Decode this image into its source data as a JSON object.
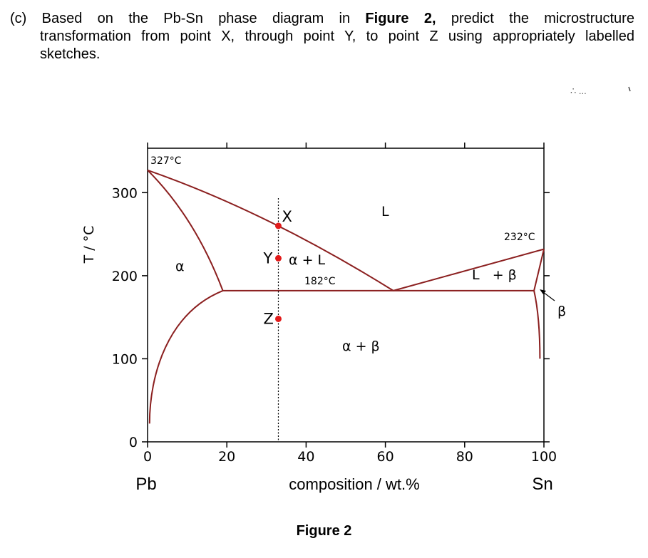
{
  "question": {
    "part": "(c)",
    "line1_words": [
      "Based",
      "on",
      "the",
      "Pb-Sn",
      "phase",
      "diagram",
      "in",
      "Figure",
      "2,",
      "predict",
      "the",
      "microstructure"
    ],
    "line2": "transformation from point X, through point Y, to point Z using appropriately labelled",
    "line3": "sketches."
  },
  "figure": {
    "caption": "Figure 2",
    "y_axis_label": "T / °C",
    "x_axis_label": "composition / wt.%",
    "x_ticks": [
      "0",
      "20",
      "40",
      "60",
      "80",
      "100"
    ],
    "y_ticks": [
      "0",
      "100",
      "200",
      "300"
    ],
    "left_element": "Pb",
    "right_element": "Sn",
    "temperatures": {
      "pb_melt": "327°C",
      "sn_melt": "232°C",
      "eutectic": "182°C"
    },
    "phase_labels": {
      "alpha": "α",
      "liquid": "L",
      "alpha_liquid": "α + L",
      "alpha_beta": "α + β",
      "liquid_beta": "L   + β",
      "beta": "β"
    },
    "points": [
      {
        "label": "X",
        "wt": 33,
        "T": 260
      },
      {
        "label": "Y",
        "wt": 33,
        "T": 221
      },
      {
        "label": "Z",
        "wt": 33,
        "T": 148
      }
    ],
    "handwritten_marks": "∴ ..."
  },
  "chart_data": {
    "type": "phase-diagram",
    "xlim": [
      0,
      100
    ],
    "ylim": [
      0,
      350
    ],
    "x_unit": "wt.% Sn",
    "y_unit": "°C",
    "pb_melting_point": 327,
    "sn_melting_point": 232,
    "eutectic": {
      "T": 182,
      "composition": 62
    },
    "alpha_max_solubility": 19,
    "beta_max_solubility": 97.5,
    "liquidus_left": [
      [
        0,
        327
      ],
      [
        62,
        182
      ]
    ],
    "liquidus_right": [
      [
        62,
        182
      ],
      [
        100,
        232
      ]
    ],
    "solidus_alpha": [
      [
        0,
        327
      ],
      [
        19,
        182
      ]
    ],
    "solidus_beta": [
      [
        97.5,
        182
      ],
      [
        100,
        232
      ]
    ],
    "solvus_alpha": [
      [
        19,
        182
      ],
      [
        10,
        130
      ],
      [
        4,
        70
      ],
      [
        2,
        20
      ]
    ],
    "solvus_beta": [
      [
        97.5,
        182
      ],
      [
        99,
        100
      ]
    ],
    "composition_line": 33
  }
}
